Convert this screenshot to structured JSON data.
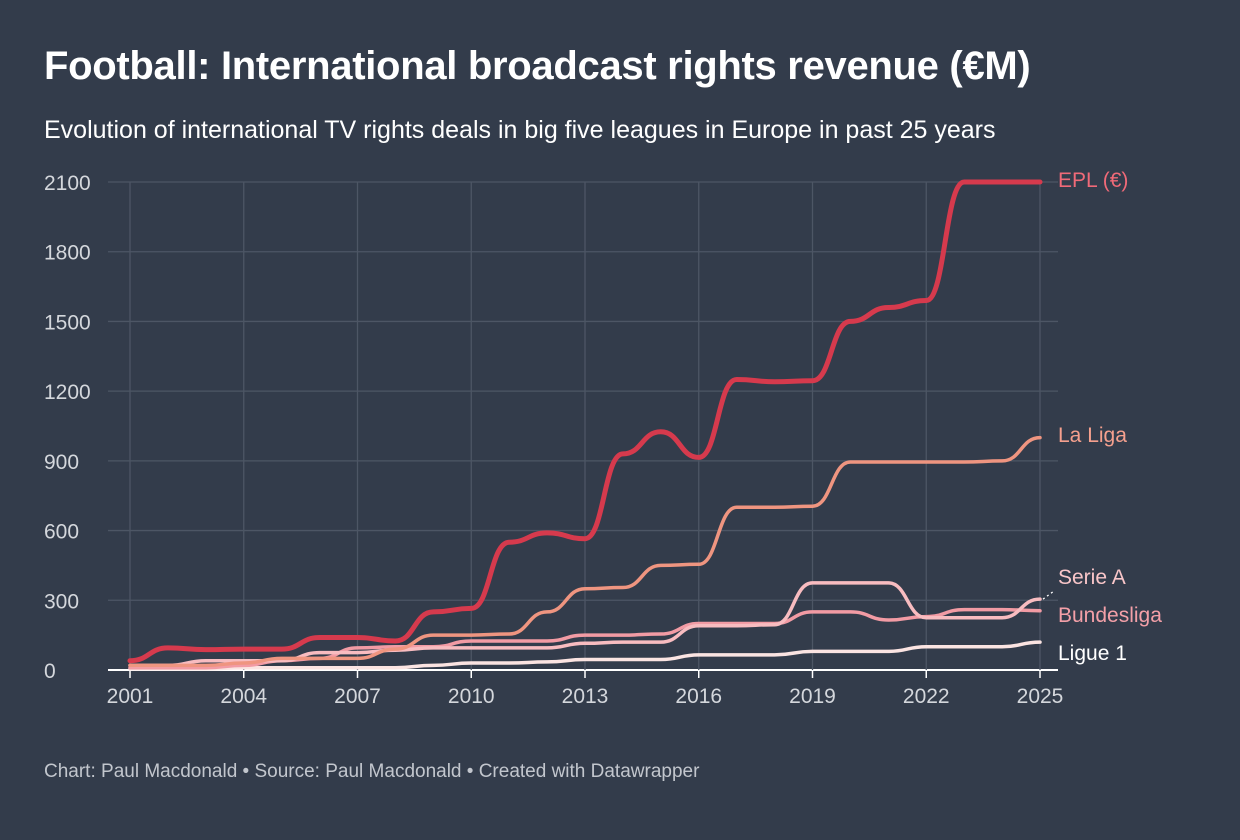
{
  "header": {
    "title": "Football: International broadcast rights revenue (€M)",
    "subtitle": "Evolution of international TV rights deals in big five leagues in Europe in past 25 years"
  },
  "footer": {
    "credit": "Chart: Paul Macdonald • Source: Paul Macdonald • Created with Datawrapper"
  },
  "colors": {
    "background": "#333c4b",
    "grid": "#4d5665",
    "epl": "#d63a4d",
    "la_liga": "#ef9580",
    "serie_a": "#f8bcc0",
    "bundesliga": "#f29ba4",
    "ligue_1": "#fbe4e2"
  },
  "chart_data": {
    "type": "line",
    "title": "Football: International broadcast rights revenue (€M)",
    "subtitle": "Evolution of international TV rights deals in big five leagues in Europe in past 25 years",
    "xlabel": "",
    "ylabel": "",
    "x": [
      2001,
      2002,
      2003,
      2004,
      2005,
      2006,
      2007,
      2008,
      2009,
      2010,
      2011,
      2012,
      2013,
      2014,
      2015,
      2016,
      2017,
      2018,
      2019,
      2020,
      2021,
      2022,
      2023,
      2024,
      2025
    ],
    "xlim": [
      2001,
      2025
    ],
    "ylim": [
      0,
      2100
    ],
    "x_ticks": [
      2001,
      2004,
      2007,
      2010,
      2013,
      2016,
      2019,
      2022,
      2025
    ],
    "y_ticks": [
      0,
      300,
      600,
      900,
      1200,
      1500,
      1800,
      2100
    ],
    "grid": true,
    "legend": "direct labels at right end of lines",
    "series": [
      {
        "name": "EPL (€)",
        "color": "#d63a4d",
        "values": [
          40,
          95,
          88,
          90,
          90,
          140,
          140,
          125,
          250,
          265,
          550,
          590,
          565,
          930,
          1025,
          915,
          1250,
          1240,
          1245,
          1500,
          1560,
          1590,
          2100,
          2100,
          2100
        ]
      },
      {
        "name": "La Liga",
        "color": "#ef9580",
        "values": [
          20,
          20,
          20,
          30,
          50,
          50,
          50,
          90,
          150,
          150,
          155,
          250,
          350,
          355,
          450,
          455,
          700,
          700,
          705,
          895,
          895,
          895,
          895,
          900,
          1000
        ]
      },
      {
        "name": "Serie A",
        "color": "#f8bcc0",
        "values": [
          20,
          20,
          40,
          40,
          40,
          75,
          75,
          85,
          95,
          95,
          95,
          95,
          115,
          120,
          120,
          190,
          190,
          195,
          375,
          375,
          375,
          225,
          225,
          225,
          305
        ]
      },
      {
        "name": "Bundesliga",
        "color": "#f29ba4",
        "values": [
          10,
          10,
          10,
          20,
          40,
          50,
          95,
          100,
          100,
          125,
          125,
          125,
          150,
          150,
          155,
          200,
          200,
          200,
          250,
          250,
          215,
          230,
          260,
          260,
          255
        ]
      },
      {
        "name": "Ligue 1",
        "color": "#fbe4e2",
        "values": [
          5,
          5,
          5,
          10,
          10,
          10,
          10,
          10,
          20,
          30,
          30,
          35,
          45,
          45,
          45,
          65,
          65,
          65,
          80,
          80,
          80,
          100,
          100,
          100,
          120
        ]
      }
    ]
  }
}
